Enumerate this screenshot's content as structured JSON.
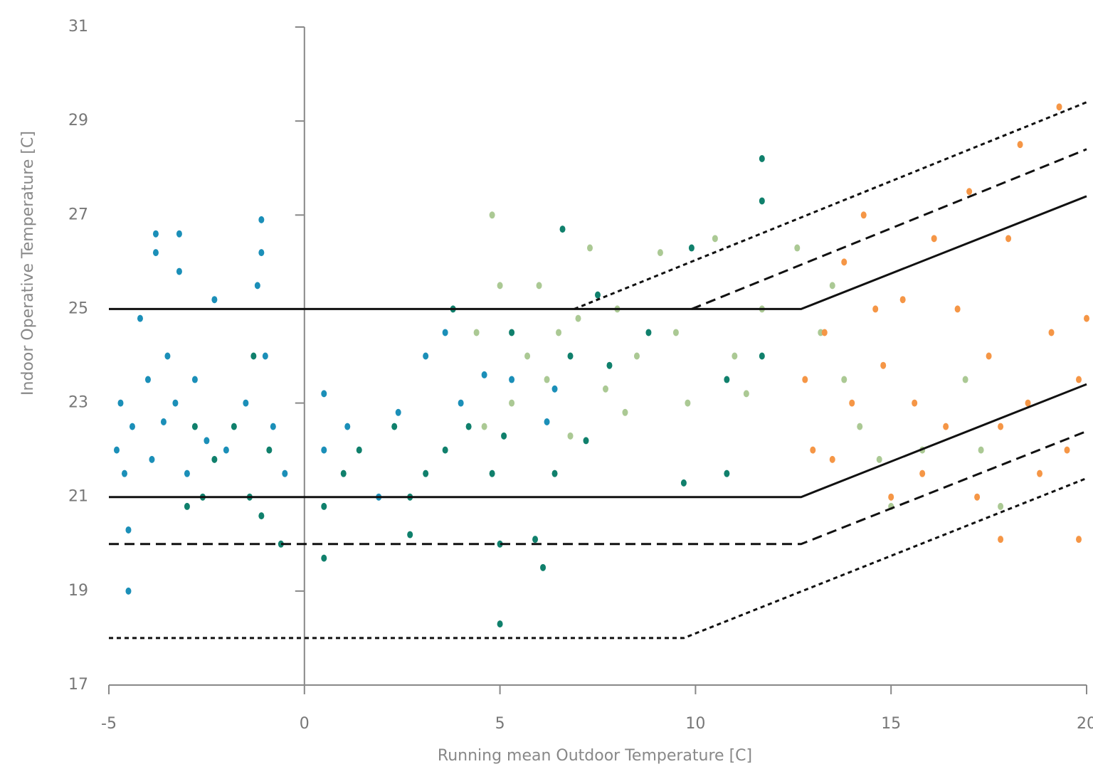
{
  "chart_data": {
    "type": "scatter",
    "xlabel": "Running mean Outdoor Temperature [C]",
    "ylabel": "Indoor Operative Temperature [C]",
    "xlim": [
      -5,
      20
    ],
    "ylim": [
      17,
      31
    ],
    "xticks": [
      -5,
      0,
      5,
      10,
      15,
      20
    ],
    "yticks": [
      17,
      19,
      21,
      23,
      25,
      27,
      29,
      31
    ],
    "grid": false,
    "series": [
      {
        "color": "#1b8fb8",
        "x": [
          -4.8,
          -4.7,
          -4.6,
          -4.5,
          -4.5,
          -4.4,
          -4.2,
          -4.0,
          -3.9,
          -3.8,
          -3.8,
          -3.6,
          -3.5,
          -3.3,
          -3.2,
          -3.2,
          -3.0,
          -2.8,
          -2.5,
          -2.3,
          -2.0,
          -1.5,
          -1.2,
          -1.1,
          -1.1,
          -1.0,
          -0.8,
          -0.5,
          0.5,
          0.5,
          1.1,
          1.9,
          2.4,
          3.1,
          3.6,
          4.0,
          4.6,
          5.3,
          6.2,
          6.4
        ],
        "values": [
          22.0,
          23.0,
          21.5,
          20.3,
          19.0,
          22.5,
          24.8,
          23.5,
          21.8,
          26.6,
          26.2,
          22.6,
          24.0,
          23.0,
          26.6,
          25.8,
          21.5,
          23.5,
          22.2,
          25.2,
          22.0,
          23.0,
          25.5,
          26.9,
          26.2,
          24.0,
          22.5,
          21.5,
          23.2,
          22.0,
          22.5,
          21.0,
          22.8,
          24.0,
          24.5,
          23.0,
          23.6,
          23.5,
          22.6,
          23.3
        ]
      },
      {
        "color": "#10806c",
        "x": [
          -3.0,
          -2.8,
          -2.6,
          -2.3,
          -1.8,
          -1.4,
          -1.3,
          -1.1,
          -0.9,
          -0.6,
          0.5,
          0.5,
          1.0,
          1.4,
          2.3,
          2.7,
          2.7,
          3.1,
          3.6,
          3.8,
          4.2,
          4.8,
          5.0,
          5.0,
          5.1,
          5.3,
          5.9,
          6.1,
          6.4,
          6.6,
          6.8,
          7.2,
          7.5,
          7.8,
          8.8,
          9.7,
          9.9,
          10.8,
          10.8,
          11.7,
          11.7,
          11.7
        ],
        "values": [
          20.8,
          22.5,
          21.0,
          21.8,
          22.5,
          21.0,
          24.0,
          20.6,
          22.0,
          20.0,
          19.7,
          20.8,
          21.5,
          22.0,
          22.5,
          21.0,
          20.2,
          21.5,
          22.0,
          25.0,
          22.5,
          21.5,
          18.3,
          20.0,
          22.3,
          24.5,
          20.1,
          19.5,
          21.5,
          26.7,
          24.0,
          22.2,
          25.3,
          23.8,
          24.5,
          21.3,
          26.3,
          21.5,
          23.5,
          28.2,
          27.3,
          24.0
        ]
      },
      {
        "color": "#abc994",
        "x": [
          4.4,
          4.6,
          4.8,
          5.0,
          5.3,
          5.7,
          6.0,
          6.2,
          6.5,
          6.8,
          7.0,
          7.3,
          7.7,
          8.0,
          8.2,
          8.5,
          9.1,
          9.5,
          9.8,
          10.5,
          11.0,
          11.3,
          11.7,
          12.6,
          13.2,
          13.5,
          13.8,
          14.2,
          14.7,
          15.0,
          15.8,
          16.9,
          17.3,
          17.8
        ],
        "values": [
          24.5,
          22.5,
          27.0,
          25.5,
          23.0,
          24.0,
          25.5,
          23.5,
          24.5,
          22.3,
          24.8,
          26.3,
          23.3,
          25.0,
          22.8,
          24.0,
          26.2,
          24.5,
          23.0,
          26.5,
          24.0,
          23.2,
          25.0,
          26.3,
          24.5,
          25.5,
          23.5,
          22.5,
          21.8,
          20.8,
          22.0,
          23.5,
          22.0,
          20.8
        ]
      },
      {
        "color": "#f59646",
        "x": [
          12.8,
          13.0,
          13.3,
          13.5,
          13.8,
          14.0,
          14.3,
          14.6,
          14.8,
          15.0,
          15.3,
          15.6,
          15.8,
          16.1,
          16.4,
          16.7,
          17.0,
          17.2,
          17.5,
          17.8,
          17.8,
          18.0,
          18.3,
          18.5,
          18.8,
          19.1,
          19.3,
          19.5,
          19.8,
          19.8,
          20.0
        ],
        "values": [
          23.5,
          22.0,
          24.5,
          21.8,
          26.0,
          23.0,
          27.0,
          25.0,
          23.8,
          21.0,
          25.2,
          23.0,
          21.5,
          26.5,
          22.5,
          25.0,
          27.5,
          21.0,
          24.0,
          22.5,
          20.1,
          26.5,
          28.5,
          23.0,
          21.5,
          24.5,
          29.3,
          22.0,
          23.5,
          20.1,
          24.8
        ]
      },
      {
        "color": "#111111",
        "dash": "solid",
        "x": [
          -5,
          12.7,
          20
        ],
        "values": [
          25,
          25,
          27.4
        ]
      },
      {
        "color": "#111111",
        "dash": "dashed",
        "x": [
          9.9,
          20
        ],
        "values": [
          25,
          28.4
        ]
      },
      {
        "color": "#111111",
        "dash": "dotted",
        "x": [
          6.9,
          20
        ],
        "values": [
          25,
          29.4
        ]
      },
      {
        "color": "#111111",
        "dash": "solid",
        "x": [
          -5,
          12.7,
          20
        ],
        "values": [
          21,
          21,
          23.4
        ]
      },
      {
        "color": "#111111",
        "dash": "dashed",
        "x": [
          -5,
          12.7,
          20
        ],
        "values": [
          20,
          20,
          22.4
        ]
      },
      {
        "color": "#111111",
        "dash": "dotted",
        "x": [
          -5,
          9.7,
          20
        ],
        "values": [
          18,
          18,
          21.4
        ]
      }
    ]
  }
}
